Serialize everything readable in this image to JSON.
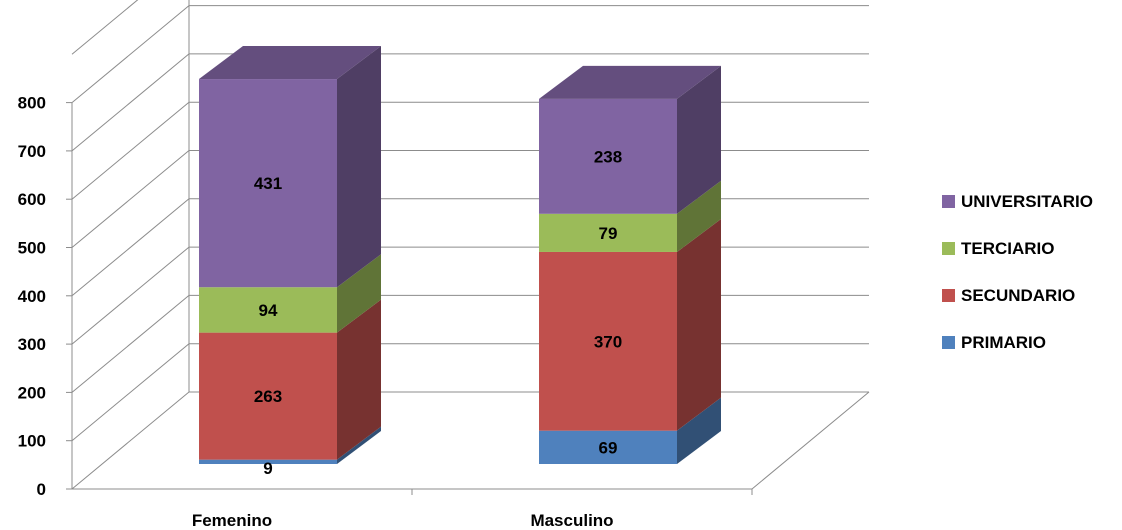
{
  "chart_data": {
    "type": "bar",
    "stacked": true,
    "three_d": true,
    "categories": [
      "Femenino",
      "Masculino"
    ],
    "series": [
      {
        "name": "PRIMARIO",
        "values": [
          9,
          69
        ],
        "color": "#4f81bd"
      },
      {
        "name": "SECUNDARIO",
        "values": [
          263,
          370
        ],
        "color": "#c0504d"
      },
      {
        "name": "TERCIARIO",
        "values": [
          94,
          79
        ],
        "color": "#9bbb59"
      },
      {
        "name": "UNIVERSITARIO",
        "values": [
          431,
          238
        ],
        "color": "#8064a2"
      }
    ],
    "ylim": [
      0,
      800
    ],
    "yticks": [
      0,
      100,
      200,
      300,
      400,
      500,
      600,
      700,
      800
    ],
    "grid": true,
    "legend_position": "right",
    "title": "",
    "xlabel": "",
    "ylabel": ""
  }
}
